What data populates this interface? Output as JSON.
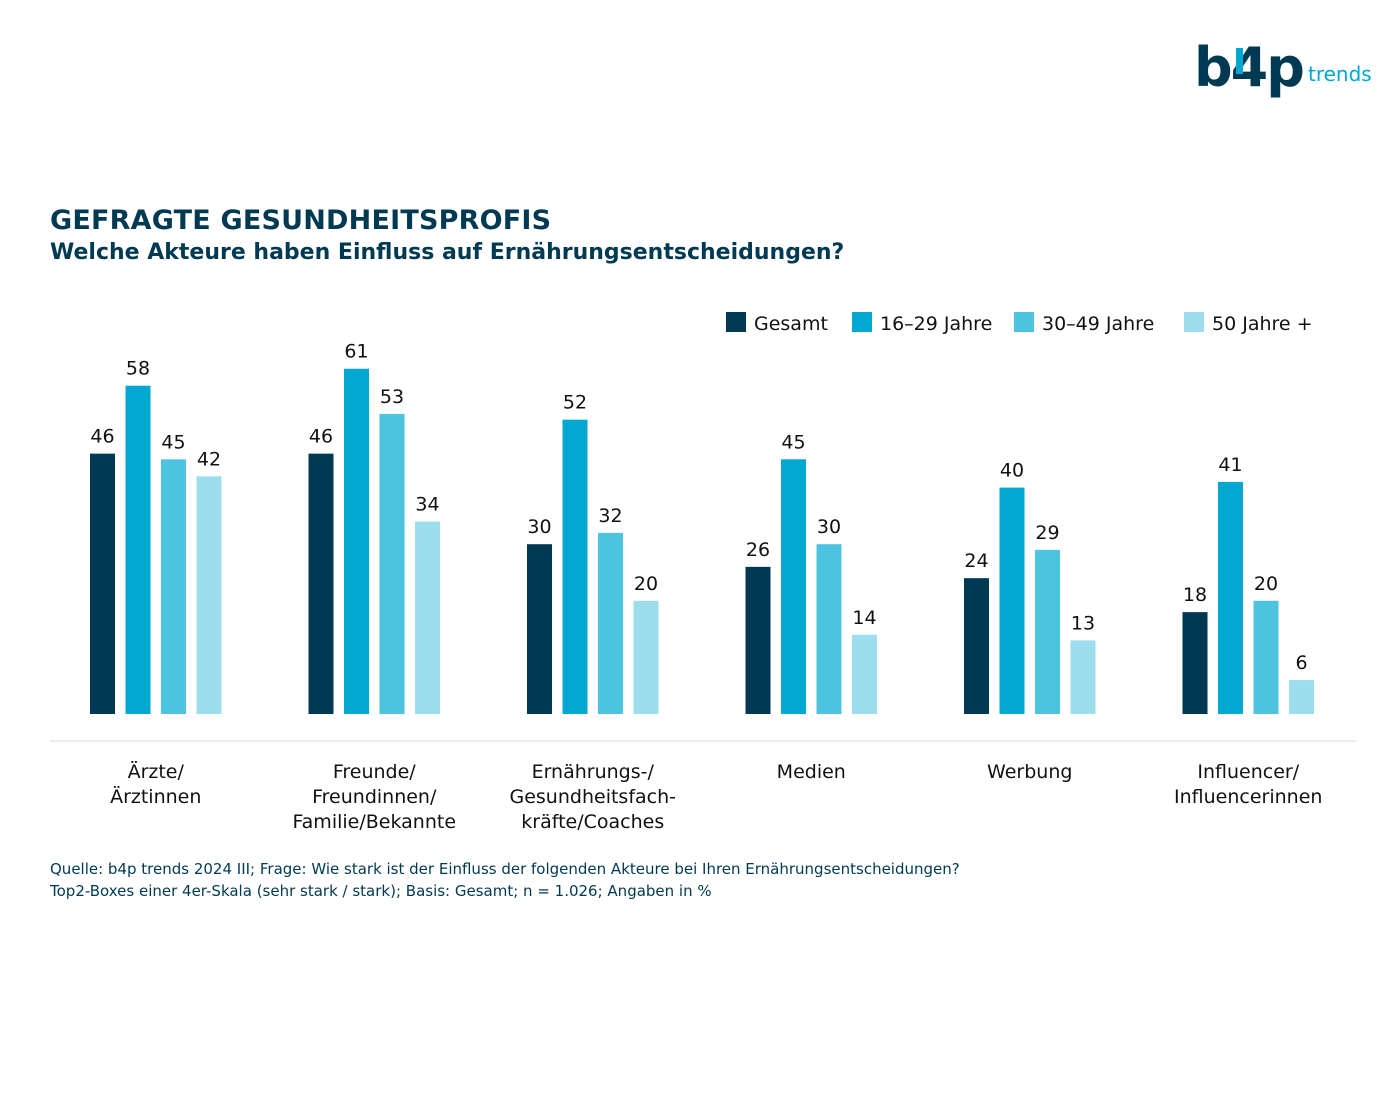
{
  "logo": {
    "main": "b4p",
    "sub": "trends"
  },
  "title": "GEFRAGTE GESUNDHEITSPROFIS",
  "subtitle": "Welche Akteure haben Einfluss auf Ernährungsentscheidungen?",
  "source": [
    "Quelle: b4p trends 2024 III; Frage: Wie stark ist der Einfluss der folgenden Akteure bei Ihren Ernährungsentscheidungen?",
    "Top2-Boxes einer 4er-Skala (sehr stark / stark); Basis: Gesamt; n = 1.026; Angaben in %"
  ],
  "chart_data": {
    "type": "bar",
    "categories": [
      [
        "Ärzte/",
        "Ärztinnen"
      ],
      [
        "Freunde/",
        "Freundinnen/",
        "Familie/Bekannte"
      ],
      [
        "Ernährungs-/",
        "Gesundheitsfach-",
        "kräfte/Coaches"
      ],
      [
        "Medien"
      ],
      [
        "Werbung"
      ],
      [
        "Influencer/",
        "Influencerinnen"
      ]
    ],
    "series": [
      {
        "name": "Gesamt",
        "color": "#003a52",
        "values": [
          46,
          46,
          30,
          26,
          24,
          18
        ]
      },
      {
        "name": "16–29 Jahre",
        "color": "#00a7d1",
        "values": [
          58,
          61,
          52,
          45,
          40,
          41
        ]
      },
      {
        "name": "30–49 Jahre",
        "color": "#4cc3df",
        "values": [
          45,
          53,
          32,
          30,
          29,
          20
        ]
      },
      {
        "name": "50 Jahre +",
        "color": "#9ddeee",
        "values": [
          42,
          34,
          20,
          14,
          13,
          6
        ]
      }
    ],
    "ylim": [
      0,
      61
    ],
    "legend": "top-right",
    "grid": false
  }
}
